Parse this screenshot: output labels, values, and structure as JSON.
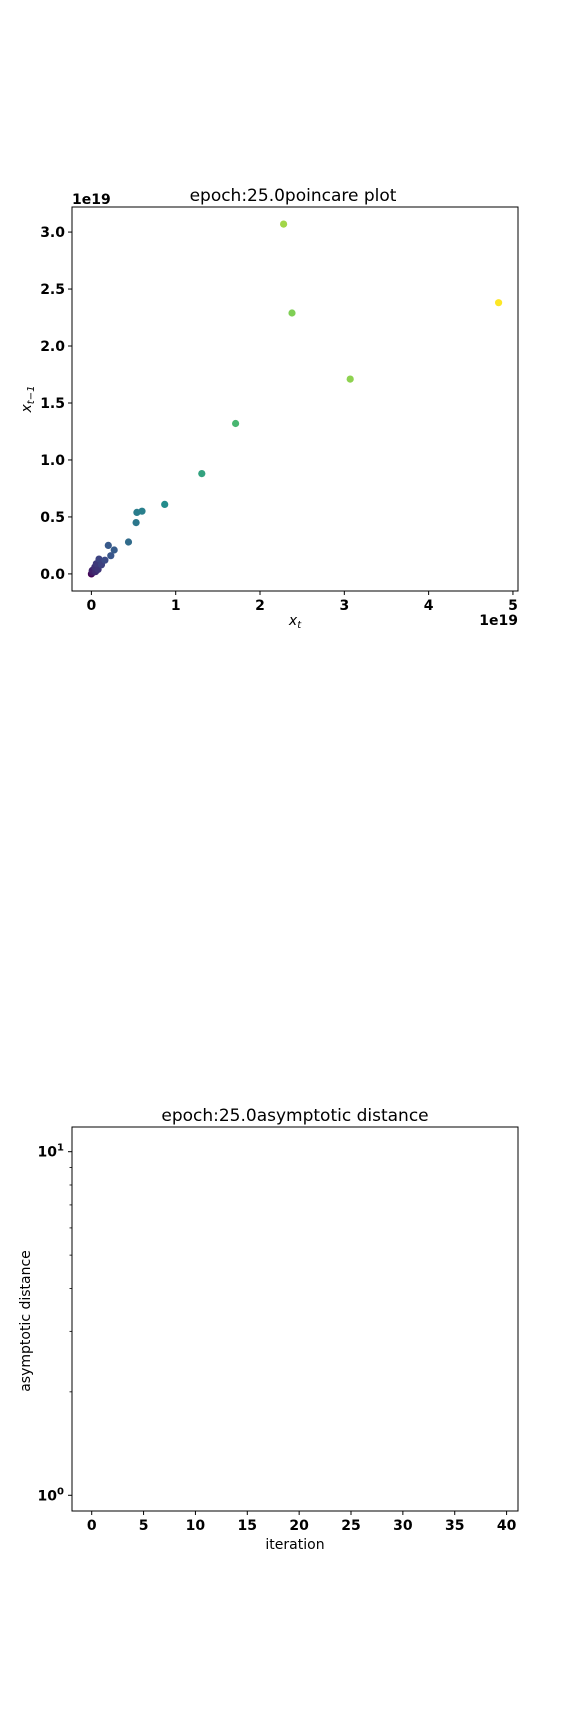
{
  "chart_data": [
    {
      "type": "scatter",
      "title": "epoch:25.0poincare plot",
      "xlabel": "x",
      "xlabel_sub": "t",
      "ylabel": "x",
      "ylabel_sub": "t−1",
      "x_offset_label": "1e19",
      "y_offset_label": "1e19",
      "scale_note": "axis values in units of 1e19",
      "xlim": [
        -0.23,
        5.06
      ],
      "ylim": [
        -0.15,
        3.22
      ],
      "xticks": [
        0,
        1,
        2,
        3,
        4,
        5
      ],
      "xtick_labels": [
        "0",
        "1",
        "2",
        "3",
        "4",
        "5"
      ],
      "yticks": [
        0.0,
        0.5,
        1.0,
        1.5,
        2.0,
        2.5,
        3.0
      ],
      "ytick_labels": [
        "0.0",
        "0.5",
        "1.0",
        "1.5",
        "2.0",
        "2.5",
        "3.0"
      ],
      "colormap": "viridis",
      "points": [
        {
          "x": 0.0,
          "y": 0.0
        },
        {
          "x": 0.01,
          "y": 0.01
        },
        {
          "x": 0.02,
          "y": 0.02
        },
        {
          "x": 0.03,
          "y": 0.04
        },
        {
          "x": 0.01,
          "y": 0.03
        },
        {
          "x": 0.05,
          "y": 0.02
        },
        {
          "x": 0.04,
          "y": 0.06
        },
        {
          "x": 0.08,
          "y": 0.04
        },
        {
          "x": 0.06,
          "y": 0.09
        },
        {
          "x": 0.09,
          "y": 0.13
        },
        {
          "x": 0.12,
          "y": 0.08
        },
        {
          "x": 0.16,
          "y": 0.12
        },
        {
          "x": 0.2,
          "y": 0.25
        },
        {
          "x": 0.23,
          "y": 0.16
        },
        {
          "x": 0.27,
          "y": 0.21
        },
        {
          "x": 0.44,
          "y": 0.28
        },
        {
          "x": 0.53,
          "y": 0.45
        },
        {
          "x": 0.54,
          "y": 0.54
        },
        {
          "x": 0.6,
          "y": 0.55
        },
        {
          "x": 0.87,
          "y": 0.61
        },
        {
          "x": 1.31,
          "y": 0.88
        },
        {
          "x": 1.71,
          "y": 1.32
        },
        {
          "x": 2.38,
          "y": 2.29
        },
        {
          "x": 2.28,
          "y": 3.07
        },
        {
          "x": 3.07,
          "y": 1.71
        },
        {
          "x": 4.83,
          "y": 2.38
        }
      ],
      "grid": false
    },
    {
      "type": "line",
      "title": "epoch:25.0asymptotic distance",
      "xlabel": "iteration",
      "ylabel": "asymptotic distance",
      "yscale": "log",
      "xlim": [
        -1.9,
        41.1
      ],
      "ylim": [
        0.9,
        11.8
      ],
      "xticks": [
        0,
        5,
        10,
        15,
        20,
        25,
        30,
        35,
        40
      ],
      "xtick_labels": [
        "0",
        "5",
        "10",
        "15",
        "20",
        "25",
        "30",
        "35",
        "40"
      ],
      "ytick_major": [
        {
          "value": 1,
          "base": "10",
          "exp": "0"
        },
        {
          "value": 10,
          "base": "10",
          "exp": "1"
        }
      ],
      "ytick_minor": [
        2,
        3,
        4,
        5,
        6,
        7,
        8,
        9
      ],
      "series": [],
      "grid": false
    }
  ]
}
